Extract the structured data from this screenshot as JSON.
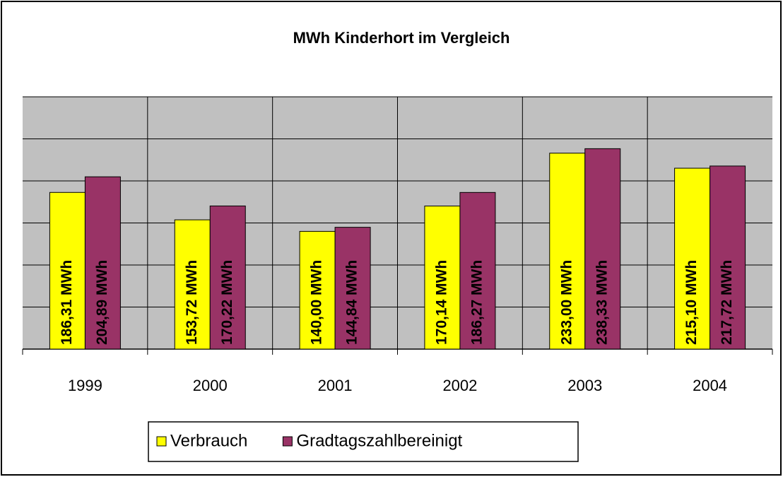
{
  "chart_data": {
    "type": "bar",
    "title": "MWh Kinderhort im Vergleich",
    "categories": [
      "1999",
      "2000",
      "2001",
      "2002",
      "2003",
      "2004"
    ],
    "series": [
      {
        "name": "Verbrauch",
        "color": "#ffff00",
        "values": [
          186.31,
          153.72,
          140.0,
          170.14,
          233.0,
          215.1
        ],
        "value_labels": [
          "186,31 MWh",
          "153,72 MWh",
          "140,00 MWh",
          "170,14 MWh",
          "233,00 MWh",
          "215,10 MWh"
        ]
      },
      {
        "name": "Gradtagszahlbereinigt",
        "color": "#993366",
        "values": [
          204.89,
          170.22,
          144.84,
          186.27,
          238.33,
          217.72
        ],
        "value_labels": [
          "204,89 MWh",
          "170,22 MWh",
          "144,84 MWh",
          "186,27 MWh",
          "238,33 MWh",
          "217,72 MWh"
        ]
      }
    ],
    "ylim": [
      0,
      300
    ],
    "yticks": [
      0,
      50,
      100,
      150,
      200,
      250,
      300
    ],
    "grid": true,
    "legend": "bottom"
  }
}
